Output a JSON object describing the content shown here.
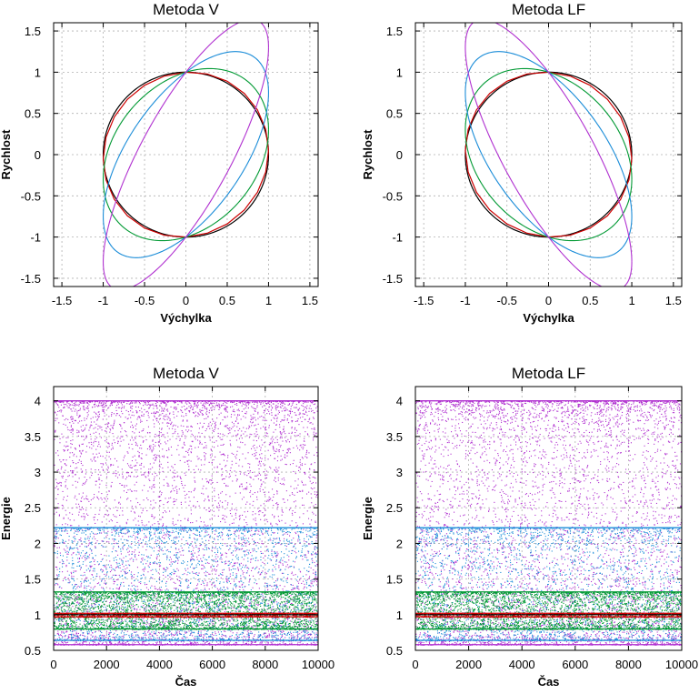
{
  "colors": {
    "black": "#000000",
    "red": "#cc0000",
    "green": "#009933",
    "blue": "#1a8cd8",
    "purple": "#b030d0"
  },
  "chart_data": [
    {
      "id": "phase-v",
      "type": "line",
      "title": "Metoda V",
      "xlabel": "Výchylka",
      "ylabel": "Rychlost",
      "xlim": [
        -1.6,
        1.6
      ],
      "ylim": [
        -1.6,
        1.6
      ],
      "xticks": [
        "-1.5",
        "-1",
        "-0.5",
        "0",
        "0.5",
        "1",
        "1.5"
      ],
      "yticks": [
        "-1.5",
        "-1",
        "-0.5",
        "0",
        "0.5",
        "1",
        "1.5"
      ],
      "grid": true,
      "series": [
        {
          "color": "black",
          "shape": "circle",
          "a": 1.0,
          "b": 0.0
        },
        {
          "color": "red",
          "shape": "polygon",
          "a": 1.0,
          "b": 0.05
        },
        {
          "color": "green",
          "shape": "ellipse",
          "a": 1.0,
          "b": 0.3
        },
        {
          "color": "blue",
          "shape": "ellipse",
          "a": 1.0,
          "b": 0.75
        },
        {
          "color": "purple",
          "shape": "ellipse",
          "a": 1.0,
          "b": 1.3
        }
      ]
    },
    {
      "id": "phase-lf",
      "type": "line",
      "title": "Metoda LF",
      "xlabel": "Výchylka",
      "ylabel": "Rychlost",
      "xlim": [
        -1.6,
        1.6
      ],
      "ylim": [
        -1.6,
        1.6
      ],
      "xticks": [
        "-1.5",
        "-1",
        "-0.5",
        "0",
        "0.5",
        "1",
        "1.5"
      ],
      "yticks": [
        "-1.5",
        "-1",
        "-0.5",
        "0",
        "0.5",
        "1",
        "1.5"
      ],
      "grid": true,
      "series": [
        {
          "color": "black",
          "shape": "circle",
          "a": 1.0,
          "b": 0.0
        },
        {
          "color": "red",
          "shape": "polygon",
          "a": 1.0,
          "b": -0.05
        },
        {
          "color": "green",
          "shape": "ellipse",
          "a": 1.0,
          "b": -0.3
        },
        {
          "color": "blue",
          "shape": "ellipse",
          "a": 1.0,
          "b": -0.75
        },
        {
          "color": "purple",
          "shape": "ellipse",
          "a": 1.0,
          "b": -1.3
        }
      ]
    },
    {
      "id": "energy-v",
      "type": "scatter",
      "title": "Metoda V",
      "xlabel": "Čas",
      "ylabel": "Energie",
      "xlim": [
        0,
        10000
      ],
      "ylim": [
        0.5,
        4.2
      ],
      "xticks": [
        "0",
        "2000",
        "4000",
        "6000",
        "8000",
        "10000"
      ],
      "yticks": [
        "0.5",
        "1",
        "1.5",
        "2",
        "2.5",
        "3",
        "3.5",
        "4"
      ],
      "grid": true,
      "series": [
        {
          "color": "purple",
          "band": [
            0.58,
            4.0
          ]
        },
        {
          "color": "blue",
          "band": [
            0.64,
            2.22
          ]
        },
        {
          "color": "green",
          "band": [
            0.8,
            1.32
          ]
        },
        {
          "color": "red",
          "band": [
            0.97,
            1.02
          ]
        },
        {
          "color": "black",
          "band": [
            1.0,
            1.0
          ]
        }
      ]
    },
    {
      "id": "energy-lf",
      "type": "scatter",
      "title": "Metoda LF",
      "xlabel": "Čas",
      "ylabel": "Energie",
      "xlim": [
        0,
        10000
      ],
      "ylim": [
        0.5,
        4.2
      ],
      "xticks": [
        "0",
        "2000",
        "4000",
        "6000",
        "8000",
        "10000"
      ],
      "yticks": [
        "0.5",
        "1",
        "1.5",
        "2",
        "2.5",
        "3",
        "3.5",
        "4"
      ],
      "grid": true,
      "series": [
        {
          "color": "purple",
          "band": [
            0.58,
            4.0
          ]
        },
        {
          "color": "blue",
          "band": [
            0.64,
            2.22
          ]
        },
        {
          "color": "green",
          "band": [
            0.8,
            1.32
          ]
        },
        {
          "color": "red",
          "band": [
            0.97,
            1.02
          ]
        },
        {
          "color": "black",
          "band": [
            1.0,
            1.0
          ]
        }
      ]
    }
  ]
}
